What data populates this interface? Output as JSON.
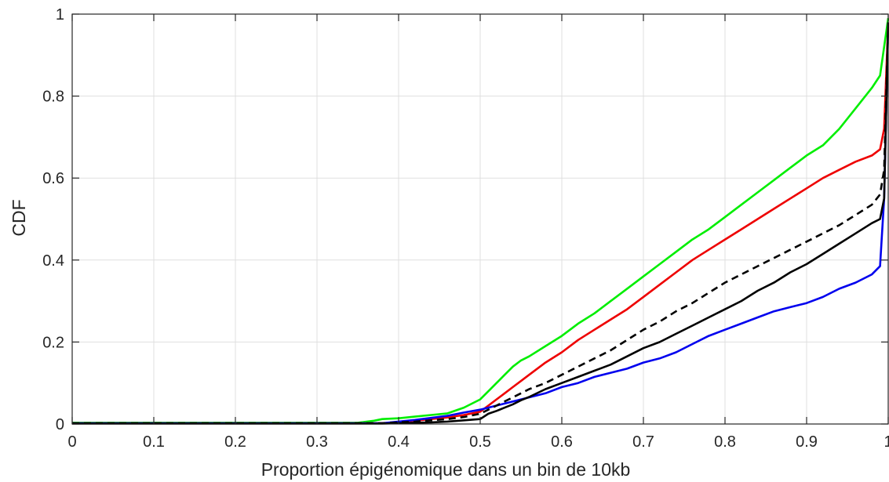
{
  "chart_data": {
    "type": "line",
    "xlabel": "Proportion épigénomique dans un bin de 10kb",
    "ylabel": "CDF",
    "xlim": [
      0,
      1
    ],
    "ylim": [
      0,
      1
    ],
    "xticks": [
      "0",
      "0.1",
      "0.2",
      "0.3",
      "0.4",
      "0.5",
      "0.6",
      "0.7",
      "0.8",
      "0.9",
      "1"
    ],
    "yticks": [
      "0",
      "0.2",
      "0.4",
      "0.6",
      "0.8",
      "1"
    ],
    "grid": true,
    "legend": "none",
    "series": [
      {
        "color": "#00ee00",
        "dash": "solid",
        "x": [
          0,
          0.35,
          0.37,
          0.38,
          0.4,
          0.42,
          0.44,
          0.46,
          0.48,
          0.5,
          0.51,
          0.52,
          0.53,
          0.54,
          0.55,
          0.56,
          0.58,
          0.6,
          0.62,
          0.64,
          0.66,
          0.68,
          0.7,
          0.72,
          0.74,
          0.76,
          0.78,
          0.8,
          0.82,
          0.84,
          0.86,
          0.88,
          0.9,
          0.92,
          0.94,
          0.96,
          0.98,
          0.99,
          1.0
        ],
        "y": [
          0.003,
          0.003,
          0.008,
          0.012,
          0.014,
          0.018,
          0.022,
          0.026,
          0.04,
          0.06,
          0.08,
          0.1,
          0.12,
          0.14,
          0.155,
          0.165,
          0.19,
          0.215,
          0.245,
          0.27,
          0.3,
          0.33,
          0.36,
          0.39,
          0.42,
          0.45,
          0.475,
          0.505,
          0.535,
          0.565,
          0.595,
          0.625,
          0.655,
          0.68,
          0.72,
          0.77,
          0.82,
          0.85,
          0.99
        ]
      },
      {
        "color": "#ee0000",
        "dash": "solid",
        "x": [
          0,
          0.38,
          0.4,
          0.42,
          0.44,
          0.46,
          0.48,
          0.5,
          0.51,
          0.52,
          0.53,
          0.54,
          0.55,
          0.56,
          0.58,
          0.6,
          0.62,
          0.64,
          0.66,
          0.68,
          0.7,
          0.72,
          0.74,
          0.76,
          0.78,
          0.8,
          0.82,
          0.84,
          0.86,
          0.88,
          0.9,
          0.92,
          0.94,
          0.96,
          0.98,
          0.99,
          0.995,
          1.0
        ],
        "y": [
          0.002,
          0.002,
          0.005,
          0.008,
          0.012,
          0.016,
          0.022,
          0.03,
          0.045,
          0.06,
          0.075,
          0.09,
          0.105,
          0.12,
          0.15,
          0.175,
          0.205,
          0.23,
          0.255,
          0.28,
          0.31,
          0.34,
          0.37,
          0.4,
          0.425,
          0.45,
          0.475,
          0.5,
          0.525,
          0.55,
          0.575,
          0.6,
          0.62,
          0.64,
          0.655,
          0.67,
          0.72,
          0.98
        ]
      },
      {
        "color": "#0000ee",
        "dash": "solid",
        "x": [
          0,
          0.38,
          0.4,
          0.42,
          0.44,
          0.46,
          0.48,
          0.5,
          0.51,
          0.52,
          0.53,
          0.54,
          0.55,
          0.56,
          0.58,
          0.6,
          0.62,
          0.64,
          0.66,
          0.68,
          0.7,
          0.72,
          0.74,
          0.76,
          0.78,
          0.8,
          0.82,
          0.84,
          0.86,
          0.88,
          0.9,
          0.92,
          0.94,
          0.96,
          0.98,
          0.99,
          0.995,
          1.0
        ],
        "y": [
          0.002,
          0.002,
          0.006,
          0.01,
          0.015,
          0.02,
          0.028,
          0.035,
          0.04,
          0.045,
          0.05,
          0.055,
          0.06,
          0.065,
          0.075,
          0.09,
          0.1,
          0.115,
          0.125,
          0.135,
          0.15,
          0.16,
          0.175,
          0.195,
          0.215,
          0.23,
          0.245,
          0.26,
          0.275,
          0.285,
          0.295,
          0.31,
          0.33,
          0.345,
          0.365,
          0.385,
          0.55,
          0.98
        ]
      },
      {
        "color": "#000000",
        "dash": "dashed",
        "x": [
          0,
          0.38,
          0.4,
          0.42,
          0.44,
          0.46,
          0.48,
          0.5,
          0.51,
          0.52,
          0.53,
          0.54,
          0.55,
          0.56,
          0.58,
          0.6,
          0.62,
          0.64,
          0.66,
          0.68,
          0.7,
          0.72,
          0.74,
          0.76,
          0.78,
          0.8,
          0.82,
          0.84,
          0.86,
          0.88,
          0.9,
          0.92,
          0.94,
          0.96,
          0.98,
          0.99,
          0.995,
          1.0
        ],
        "y": [
          0.002,
          0.002,
          0.004,
          0.006,
          0.009,
          0.012,
          0.017,
          0.025,
          0.035,
          0.045,
          0.055,
          0.065,
          0.075,
          0.085,
          0.1,
          0.12,
          0.14,
          0.16,
          0.18,
          0.205,
          0.23,
          0.25,
          0.275,
          0.295,
          0.32,
          0.345,
          0.365,
          0.385,
          0.405,
          0.425,
          0.445,
          0.465,
          0.485,
          0.51,
          0.535,
          0.56,
          0.62,
          0.98
        ]
      },
      {
        "color": "#000000",
        "dash": "solid",
        "x": [
          0,
          0.38,
          0.4,
          0.42,
          0.44,
          0.46,
          0.48,
          0.5,
          0.51,
          0.52,
          0.53,
          0.54,
          0.55,
          0.56,
          0.58,
          0.6,
          0.62,
          0.64,
          0.66,
          0.68,
          0.7,
          0.72,
          0.74,
          0.76,
          0.78,
          0.8,
          0.82,
          0.84,
          0.86,
          0.88,
          0.9,
          0.92,
          0.94,
          0.96,
          0.98,
          0.99,
          0.995,
          1.0
        ],
        "y": [
          0.001,
          0.001,
          0.002,
          0.003,
          0.004,
          0.006,
          0.009,
          0.012,
          0.025,
          0.032,
          0.04,
          0.048,
          0.058,
          0.066,
          0.085,
          0.1,
          0.115,
          0.13,
          0.145,
          0.165,
          0.185,
          0.2,
          0.22,
          0.24,
          0.26,
          0.28,
          0.3,
          0.325,
          0.345,
          0.37,
          0.39,
          0.415,
          0.44,
          0.465,
          0.49,
          0.5,
          0.55,
          0.98
        ]
      }
    ]
  }
}
